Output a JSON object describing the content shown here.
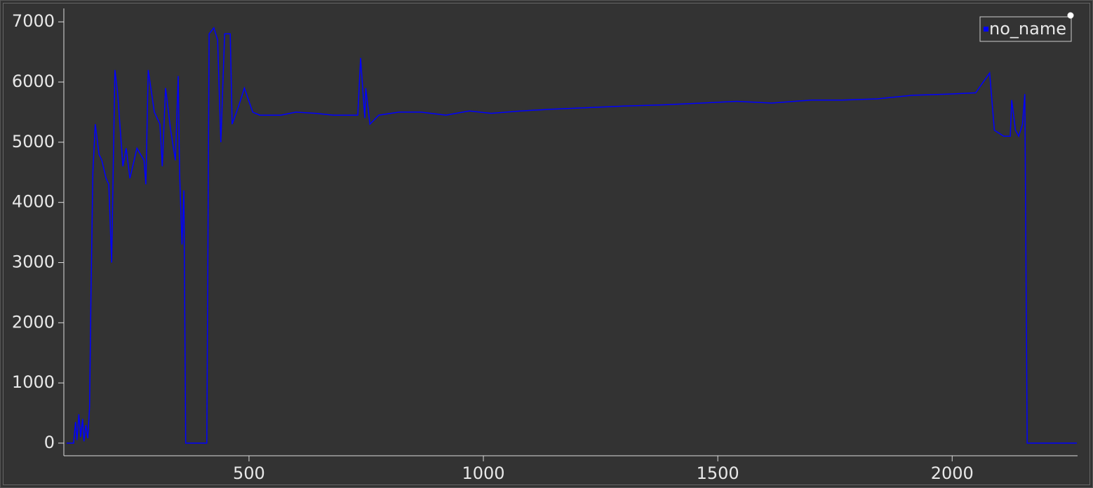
{
  "chart_data": {
    "type": "line",
    "x": [
      111,
      126,
      130,
      133,
      137,
      141,
      145,
      148,
      152,
      156,
      160,
      163,
      167,
      172,
      180,
      186,
      195,
      201,
      207,
      214,
      220,
      231,
      238,
      246,
      261,
      276,
      280,
      285,
      298,
      310,
      315,
      322,
      333,
      343,
      349,
      352,
      357,
      361,
      365,
      410,
      415,
      425,
      433,
      440,
      448,
      460,
      464,
      478,
      490,
      508,
      523,
      568,
      600,
      642,
      680,
      732,
      738,
      747,
      749,
      758,
      777,
      820,
      867,
      920,
      970,
      1017,
      1080,
      1150,
      1241,
      1300,
      1380,
      1466,
      1540,
      1615,
      1700,
      1765,
      1840,
      1915,
      1990,
      2050,
      2080,
      2090,
      2110,
      2124,
      2127,
      2135,
      2142,
      2150,
      2155,
      2160,
      2200,
      2266
    ],
    "series": [
      {
        "name": "no_name",
        "color": "#0000ff",
        "values": [
          0,
          0,
          350,
          50,
          480,
          100,
          400,
          30,
          300,
          80,
          600,
          2500,
          4500,
          5300,
          4800,
          4700,
          4400,
          4300,
          3000,
          6200,
          5800,
          4600,
          4900,
          4400,
          4900,
          4700,
          4300,
          6200,
          5500,
          5300,
          4600,
          5900,
          5200,
          4700,
          6100,
          4500,
          3300,
          4200,
          0,
          0,
          6800,
          6900,
          6700,
          5000,
          6800,
          6800,
          5300,
          5600,
          5900,
          5500,
          5450,
          5450,
          5500,
          5480,
          5450,
          5450,
          6400,
          5400,
          5900,
          5300,
          5450,
          5500,
          5500,
          5450,
          5520,
          5480,
          5520,
          5550,
          5580,
          5600,
          5620,
          5650,
          5680,
          5650,
          5700,
          5700,
          5720,
          5780,
          5800,
          5820,
          6150,
          5200,
          5100,
          5100,
          5700,
          5200,
          5100,
          5300,
          5800,
          0,
          0,
          0
        ]
      }
    ],
    "xlim": [
      111,
      2266
    ],
    "ylim": [
      -210,
      7200
    ],
    "xticks": [
      500,
      1000,
      1500,
      2000
    ],
    "yticks": [
      0,
      1000,
      2000,
      3000,
      4000,
      5000,
      6000,
      7000
    ],
    "legend": "top-right"
  }
}
